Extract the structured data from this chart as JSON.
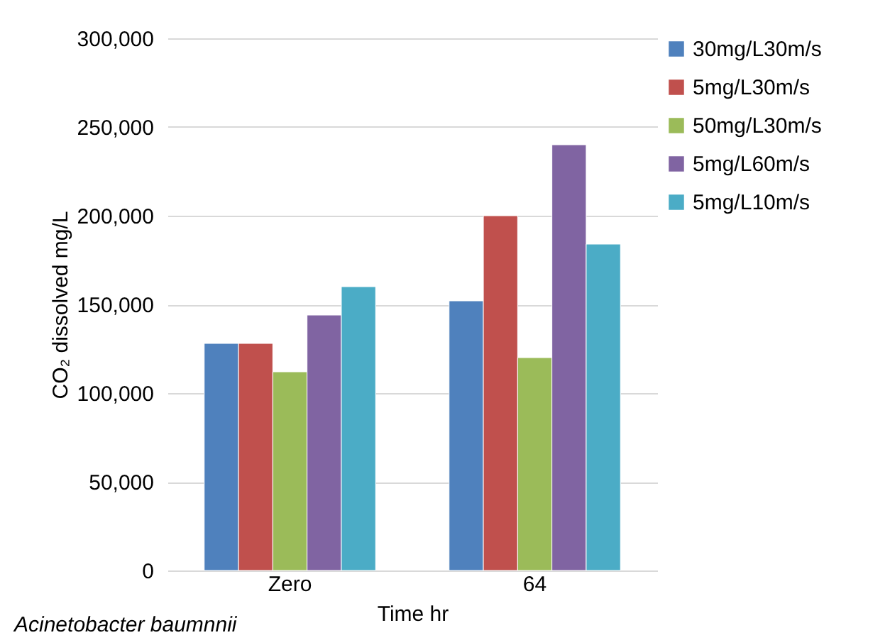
{
  "chart_data": {
    "type": "bar",
    "xlabel": "Time hr",
    "ylabel": "CO₂ dissolved mg/L",
    "categories": [
      "Zero",
      "64"
    ],
    "series": [
      {
        "name": "30mg/L30m/s",
        "color": "#4f81bd",
        "values": [
          128000,
          152000
        ]
      },
      {
        "name": "5mg/L30m/s",
        "color": "#c0504d",
        "values": [
          128000,
          200000
        ]
      },
      {
        "name": "50mg/L30m/s",
        "color": "#9bbb59",
        "values": [
          112000,
          120000
        ]
      },
      {
        "name": "5mg/L60m/s",
        "color": "#8064a2",
        "values": [
          144000,
          240000
        ]
      },
      {
        "name": "5mg/L10m/s",
        "color": "#4bacc6",
        "values": [
          160000,
          184000
        ]
      }
    ],
    "ylim": [
      0,
      300000
    ],
    "yticks": [
      0,
      {
        "value": 50000,
        "label": "50,000"
      },
      {
        "value": 100000,
        "label": "100,000"
      },
      {
        "value": 150000,
        "label": "150,000"
      },
      {
        "value": 200000,
        "label": "200,000"
      },
      {
        "value": 250000,
        "label": "250,000"
      },
      {
        "value": 300000,
        "label": "300,000"
      }
    ],
    "grid": "y",
    "legend": "right",
    "annotations": [
      "Acinetobacter baumnnii"
    ]
  }
}
